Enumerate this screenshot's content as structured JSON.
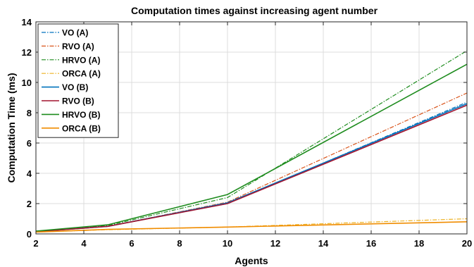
{
  "chart_data": {
    "type": "line",
    "title": "Computation times against increasing agent number",
    "xlabel": "Agents",
    "ylabel": "Computation Time (ms)",
    "xlim": [
      2,
      20
    ],
    "ylim": [
      0,
      14
    ],
    "xticks": [
      2,
      4,
      6,
      8,
      10,
      12,
      14,
      16,
      18,
      20
    ],
    "yticks": [
      0,
      2,
      4,
      6,
      8,
      10,
      12,
      14
    ],
    "grid": true,
    "legend_position": "top-left",
    "x": [
      2,
      5,
      10,
      20
    ],
    "series": [
      {
        "name": "VO (A)",
        "values": [
          0.15,
          0.5,
          2.0,
          8.7
        ],
        "color": "#0072BD",
        "dash": "dashdot"
      },
      {
        "name": "RVO (A)",
        "values": [
          0.15,
          0.5,
          2.1,
          9.3
        ],
        "color": "#D95319",
        "dash": "dashdot"
      },
      {
        "name": "HRVO (A)",
        "values": [
          0.18,
          0.55,
          2.4,
          12.1
        ],
        "color": "#1E8C1E",
        "dash": "dashdot"
      },
      {
        "name": "ORCA (A)",
        "values": [
          0.12,
          0.28,
          0.45,
          1.0
        ],
        "color": "#EDB120",
        "dash": "dashdot"
      },
      {
        "name": "VO (B)",
        "values": [
          0.15,
          0.5,
          2.05,
          8.6
        ],
        "color": "#0072BD",
        "dash": "solid"
      },
      {
        "name": "RVO (B)",
        "values": [
          0.15,
          0.5,
          2.0,
          8.5
        ],
        "color": "#A2142F",
        "dash": "solid"
      },
      {
        "name": "HRVO (B)",
        "values": [
          0.18,
          0.6,
          2.6,
          11.2
        ],
        "color": "#1E8C1E",
        "dash": "solid"
      },
      {
        "name": "ORCA (B)",
        "values": [
          0.12,
          0.3,
          0.45,
          0.8
        ],
        "color": "#F08C00",
        "dash": "solid"
      }
    ]
  }
}
